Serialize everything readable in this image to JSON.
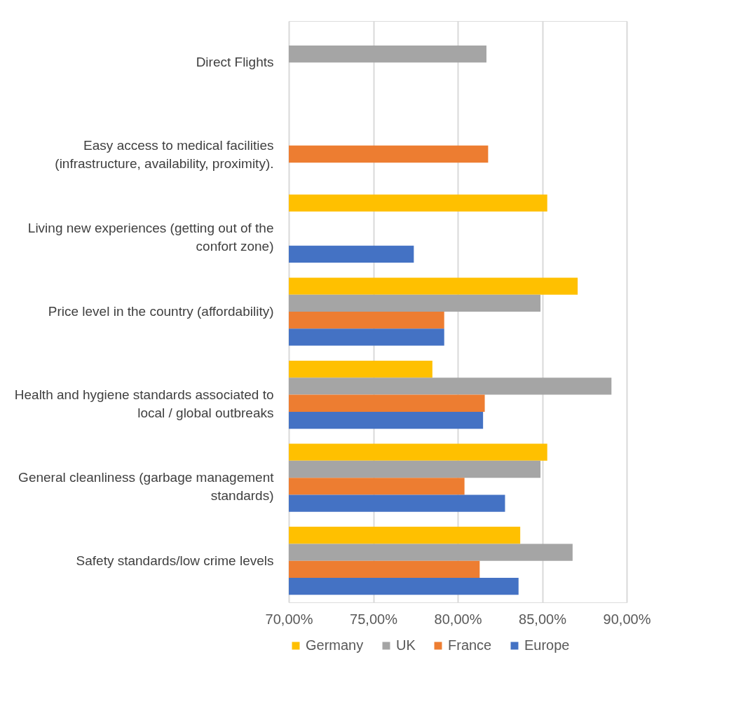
{
  "chart_data": {
    "type": "bar",
    "orientation": "horizontal",
    "categories": [
      "Direct Flights",
      "Easy access to medical facilities (infrastructure, availability, proximity).",
      "Living new experiences (getting out of the confort zone)",
      "Price level in the country (affordability)",
      "Health and hygiene standards associated to local / global outbreaks",
      "General cleanliness (garbage management standards)",
      "Safety standards/low crime levels"
    ],
    "series": [
      {
        "name": "Germany",
        "color": "#ffc000",
        "values": [
          null,
          null,
          85.3,
          87.1,
          78.5,
          85.3,
          83.7
        ]
      },
      {
        "name": "UK",
        "color": "#a5a5a5",
        "values": [
          81.7,
          null,
          null,
          84.9,
          89.1,
          84.9,
          86.8
        ]
      },
      {
        "name": "France",
        "color": "#ed7d31",
        "values": [
          null,
          81.8,
          null,
          79.2,
          81.6,
          80.4,
          81.3
        ]
      },
      {
        "name": "Europe",
        "color": "#4472c4",
        "values": [
          null,
          null,
          77.4,
          79.2,
          81.5,
          82.8,
          83.6
        ]
      }
    ],
    "xlim": [
      70,
      90
    ],
    "xticks": [
      {
        "value": 70,
        "label": "70,00%"
      },
      {
        "value": 75,
        "label": "75,00%"
      },
      {
        "value": 80,
        "label": "80,00%"
      },
      {
        "value": 85,
        "label": "85,00%"
      },
      {
        "value": 90,
        "label": "90,00%"
      }
    ],
    "grid": "x",
    "legend": "bottom"
  }
}
